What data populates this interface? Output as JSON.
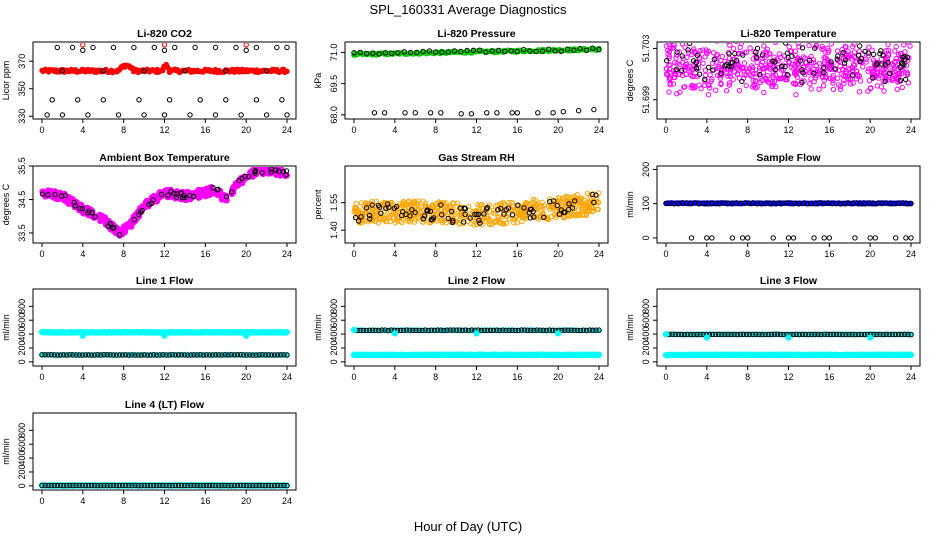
{
  "title": "SPL_160331  Average Diagnostics",
  "xlabel": "Hour of Day (UTC)",
  "chart_data": [
    {
      "type": "scatter",
      "title": "Li-820 CO2",
      "ylabel": "Licor ppm",
      "xlim": [
        0,
        24
      ],
      "ylim": [
        328,
        384
      ],
      "yticks": [
        330,
        350,
        370
      ],
      "ytick_labels": [
        "330",
        "350",
        "370"
      ],
      "series": [
        {
          "name": "",
          "kind": "noise",
          "base": 363,
          "amp": 1.2,
          "wave": [
            [
              7.5,
              9,
              4
            ],
            [
              11.8,
              12.5,
              4
            ]
          ],
          "color": "#ff0000",
          "filled": true,
          "count": 220,
          "size": 2.2
        },
        {
          "name": "",
          "kind": "list",
          "color": "#000000",
          "filled": false,
          "size": 2.2,
          "x": [
            1.5,
            3,
            5,
            7,
            9,
            11,
            13,
            15,
            17,
            19,
            21,
            23,
            24,
            1,
            3.5,
            6,
            9.5,
            12.5,
            15.5,
            18,
            21,
            23.5,
            0.5,
            2,
            4.5,
            7.5,
            10,
            12,
            14.5,
            17,
            19.5,
            22,
            24,
            4,
            12,
            20,
            2,
            6,
            10,
            14,
            18,
            22
          ],
          "y": [
            380,
            380,
            380,
            380,
            380,
            380,
            380,
            380,
            380,
            380,
            380,
            380,
            380,
            342,
            342,
            342,
            342,
            342,
            342,
            342,
            342,
            342,
            331,
            331,
            331,
            331,
            331,
            331,
            331,
            331,
            331,
            331,
            331,
            378,
            378,
            378,
            363,
            363,
            363,
            363,
            363,
            363
          ]
        },
        {
          "name": "",
          "kind": "list",
          "color": "#ff0000",
          "filled": false,
          "size": 2.2,
          "x": [
            4,
            12,
            20
          ],
          "y": [
            382,
            382,
            382
          ]
        }
      ]
    },
    {
      "type": "scatter",
      "title": "Li-820 Pressure",
      "ylabel": "kPa",
      "xlim": [
        0,
        24
      ],
      "ylim": [
        67.8,
        71.5
      ],
      "yticks": [
        68.0,
        69.5,
        71.0
      ],
      "ytick_labels": [
        "68.0",
        "69.5",
        "71.0"
      ],
      "series": [
        {
          "name": "",
          "kind": "noise",
          "base": 70.9,
          "amp": 0.05,
          "drift": 0.25,
          "color": "#00cc00",
          "filled": true,
          "count": 200,
          "size": 2.2
        },
        {
          "name": "",
          "kind": "noise",
          "base": 70.95,
          "amp": 0.06,
          "drift": 0.2,
          "color": "#000000",
          "filled": false,
          "count": 40,
          "size": 2.2
        },
        {
          "name": "",
          "kind": "list",
          "color": "#000000",
          "filled": false,
          "size": 2.2,
          "x": [
            2,
            3,
            5,
            6,
            7.5,
            8.5,
            10.5,
            11.5,
            13,
            14,
            15.5,
            16,
            18,
            19.5,
            20.5,
            22,
            23.5
          ],
          "y": [
            68.1,
            68.1,
            68.1,
            68.1,
            68.1,
            68.1,
            68.05,
            68.05,
            68.1,
            68.1,
            68.1,
            68.1,
            68.1,
            68.1,
            68.15,
            68.2,
            68.25
          ]
        }
      ]
    },
    {
      "type": "scatter",
      "title": "Li-820 Temperature",
      "ylabel": "degrees C",
      "xlim": [
        0,
        24
      ],
      "ylim": [
        51.6975,
        51.7035
      ],
      "yticks": [
        51.699,
        51.703
      ],
      "ytick_labels": [
        "51.699",
        "51.703"
      ],
      "series": [
        {
          "name": "",
          "kind": "cloud",
          "center": 51.7015,
          "spread": 0.0014,
          "color": "#ff00ff",
          "filled": false,
          "count": 600,
          "size": 2.2
        },
        {
          "name": "",
          "kind": "cloud",
          "center": 51.7018,
          "spread": 0.0011,
          "color": "#000000",
          "filled": false,
          "count": 90,
          "size": 2.2
        }
      ]
    },
    {
      "type": "scatter",
      "title": "Ambient Box Temperature",
      "ylabel": "degrees C",
      "xlim": [
        0,
        24
      ],
      "ylim": [
        33.2,
        35.5
      ],
      "yticks": [
        33.5,
        34.5,
        35.5
      ],
      "ytick_labels": [
        "33.5",
        "34.5",
        "35.5"
      ],
      "series": [
        {
          "name": "",
          "kind": "curve",
          "curve": [
            [
              0,
              34.7
            ],
            [
              2,
              34.6
            ],
            [
              4,
              34.2
            ],
            [
              6,
              33.9
            ],
            [
              7.5,
              33.5
            ],
            [
              8.5,
              33.7
            ],
            [
              10,
              34.3
            ],
            [
              12,
              34.7
            ],
            [
              14,
              34.6
            ],
            [
              16,
              34.7
            ],
            [
              17,
              34.8
            ],
            [
              18,
              34.5
            ],
            [
              19,
              34.9
            ],
            [
              20,
              35.2
            ],
            [
              22,
              35.4
            ],
            [
              24,
              35.3
            ]
          ],
          "jitter": 0.12,
          "color": "#ff00ff",
          "filled": true,
          "count": 420,
          "size": 2.6
        },
        {
          "name": "",
          "kind": "curve",
          "curve": [
            [
              0,
              34.7
            ],
            [
              2,
              34.6
            ],
            [
              4,
              34.2
            ],
            [
              6,
              33.9
            ],
            [
              7.5,
              33.5
            ],
            [
              8.5,
              33.7
            ],
            [
              10,
              34.3
            ],
            [
              12,
              34.7
            ],
            [
              14,
              34.6
            ],
            [
              16,
              34.7
            ],
            [
              17,
              34.8
            ],
            [
              18,
              34.5
            ],
            [
              19,
              34.9
            ],
            [
              20,
              35.2
            ],
            [
              22,
              35.4
            ],
            [
              24,
              35.3
            ]
          ],
          "jitter": 0.08,
          "color": "#000000",
          "filled": false,
          "count": 60,
          "size": 2.2
        }
      ]
    },
    {
      "type": "scatter",
      "title": "Gas Stream RH",
      "ylabel": "percent",
      "xlim": [
        0,
        24
      ],
      "ylim": [
        1.33,
        1.75
      ],
      "yticks": [
        1.4,
        1.55
      ],
      "ytick_labels": [
        "1.40",
        "1.55"
      ],
      "series": [
        {
          "name": "",
          "kind": "curve",
          "curve": [
            [
              0,
              1.5
            ],
            [
              4,
              1.5
            ],
            [
              8,
              1.5
            ],
            [
              12,
              1.48
            ],
            [
              16,
              1.5
            ],
            [
              20,
              1.52
            ],
            [
              24,
              1.55
            ]
          ],
          "jitter": 0.06,
          "color": "#ffa500",
          "filled": false,
          "count": 600,
          "size": 2.2
        },
        {
          "name": "",
          "kind": "curve",
          "curve": [
            [
              0,
              1.49
            ],
            [
              4,
              1.5
            ],
            [
              8,
              1.5
            ],
            [
              12,
              1.47
            ],
            [
              16,
              1.5
            ],
            [
              20,
              1.52
            ],
            [
              24,
              1.56
            ]
          ],
          "jitter": 0.045,
          "color": "#000000",
          "filled": false,
          "count": 80,
          "size": 2.2
        }
      ]
    },
    {
      "type": "scatter",
      "title": "Sample Flow",
      "ylabel": "ml/min",
      "xlim": [
        0,
        24
      ],
      "ylim": [
        -15,
        210
      ],
      "yticks": [
        0,
        100,
        200
      ],
      "ytick_labels": [
        "0",
        "100",
        "200"
      ],
      "series": [
        {
          "name": "",
          "kind": "noise",
          "base": 101,
          "amp": 1.5,
          "color": "#0000ff",
          "filled": true,
          "count": 240,
          "size": 2.2
        },
        {
          "name": "",
          "kind": "noise",
          "base": 101,
          "amp": 1.5,
          "color": "#000000",
          "filled": false,
          "count": 60,
          "size": 2.2
        },
        {
          "name": "",
          "kind": "list",
          "color": "#000000",
          "filled": false,
          "size": 2.2,
          "x": [
            2.5,
            4,
            4.5,
            6.5,
            7.5,
            8,
            10.5,
            12,
            12.5,
            14.5,
            15.5,
            16,
            18.5,
            20,
            20.5,
            22.5,
            23.5,
            24
          ],
          "y": [
            0,
            0,
            0,
            0,
            0,
            0,
            0,
            0,
            0,
            0,
            0,
            0,
            0,
            0,
            0,
            0,
            0,
            0
          ]
        }
      ]
    },
    {
      "type": "scatter",
      "title": "Line 1 Flow",
      "ylabel": "ml/min",
      "xlim": [
        0,
        24
      ],
      "ylim": [
        -60,
        1050
      ],
      "yticks": [
        0,
        200,
        400,
        600,
        800
      ],
      "ytick_labels": [
        "0",
        "200",
        "400",
        "600",
        "800"
      ],
      "series": [
        {
          "name": "",
          "kind": "noise",
          "base": 425,
          "amp": 4,
          "color": "#00ffff",
          "filled": true,
          "count": 300,
          "size": 2.6
        },
        {
          "name": "",
          "kind": "noise",
          "base": 100,
          "amp": 3,
          "color": "#00ffff",
          "filled": true,
          "count": 80,
          "size": 2.4
        },
        {
          "name": "",
          "kind": "noise",
          "base": 100,
          "amp": 3,
          "color": "#000000",
          "filled": false,
          "count": 80,
          "size": 2.2
        },
        {
          "name": "",
          "kind": "list",
          "color": "#00ffff",
          "filled": true,
          "size": 2.6,
          "x": [
            4,
            12,
            20
          ],
          "y": [
            375,
            375,
            375
          ]
        }
      ]
    },
    {
      "type": "scatter",
      "title": "Line 2 Flow",
      "ylabel": "ml/min",
      "xlim": [
        0,
        24
      ],
      "ylim": [
        -60,
        1050
      ],
      "yticks": [
        0,
        200,
        400,
        600,
        800
      ],
      "ytick_labels": [
        "0",
        "200",
        "400",
        "600",
        "800"
      ],
      "series": [
        {
          "name": "",
          "kind": "noise",
          "base": 100,
          "amp": 4,
          "color": "#00ffff",
          "filled": true,
          "count": 300,
          "size": 2.6
        },
        {
          "name": "",
          "kind": "noise",
          "base": 455,
          "amp": 3,
          "color": "#00ffff",
          "filled": true,
          "count": 80,
          "size": 2.4
        },
        {
          "name": "",
          "kind": "noise",
          "base": 455,
          "amp": 3,
          "color": "#000000",
          "filled": false,
          "count": 80,
          "size": 2.2
        },
        {
          "name": "",
          "kind": "list",
          "color": "#00ffff",
          "filled": true,
          "size": 2.6,
          "x": [
            0,
            4,
            12,
            20
          ],
          "y": [
            460,
            410,
            410,
            410
          ]
        }
      ]
    },
    {
      "type": "scatter",
      "title": "Line 3 Flow",
      "ylabel": "ml/min",
      "xlim": [
        0,
        24
      ],
      "ylim": [
        -60,
        1050
      ],
      "yticks": [
        0,
        200,
        400,
        600,
        800
      ],
      "ytick_labels": [
        "0",
        "200",
        "400",
        "600",
        "800"
      ],
      "series": [
        {
          "name": "",
          "kind": "noise",
          "base": 100,
          "amp": 4,
          "color": "#00ffff",
          "filled": true,
          "count": 300,
          "size": 2.6
        },
        {
          "name": "",
          "kind": "noise",
          "base": 395,
          "amp": 3,
          "color": "#00ffff",
          "filled": true,
          "count": 80,
          "size": 2.4
        },
        {
          "name": "",
          "kind": "noise",
          "base": 395,
          "amp": 3,
          "color": "#000000",
          "filled": false,
          "count": 80,
          "size": 2.2
        },
        {
          "name": "",
          "kind": "list",
          "color": "#00ffff",
          "filled": true,
          "size": 2.6,
          "x": [
            0,
            4,
            12,
            20
          ],
          "y": [
            400,
            350,
            350,
            350
          ]
        }
      ]
    },
    {
      "type": "scatter",
      "title": "Line 4 (LT) Flow",
      "ylabel": "ml/min",
      "xlim": [
        0,
        24
      ],
      "ylim": [
        -60,
        1050
      ],
      "yticks": [
        0,
        200,
        400,
        600,
        800
      ],
      "ytick_labels": [
        "0",
        "200",
        "400",
        "600",
        "800"
      ],
      "series": [
        {
          "name": "",
          "kind": "noise",
          "base": 5,
          "amp": 3,
          "color": "#00ffff",
          "filled": true,
          "count": 300,
          "size": 2.6
        },
        {
          "name": "",
          "kind": "noise",
          "base": 5,
          "amp": 2,
          "color": "#000000",
          "filled": false,
          "count": 80,
          "size": 2.2
        }
      ]
    }
  ]
}
